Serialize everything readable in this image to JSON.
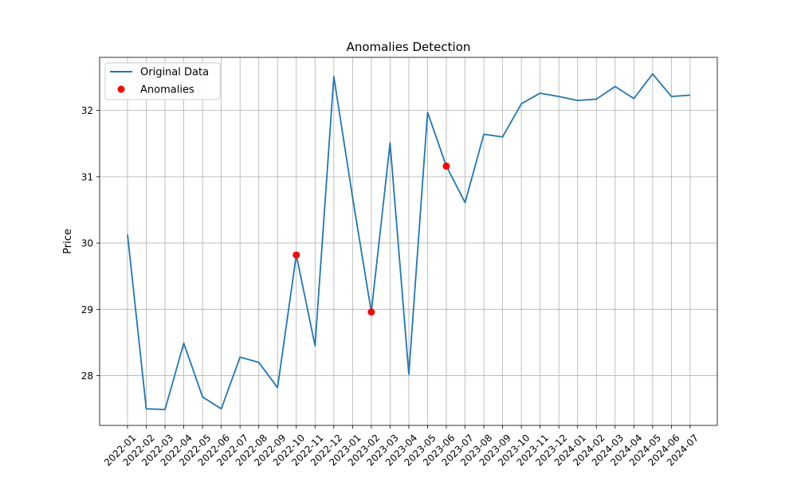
{
  "chart_data": {
    "type": "line",
    "title": "Anomalies Detection",
    "xlabel": "",
    "ylabel": "Price",
    "ylim": [
      27.25,
      32.8
    ],
    "yticks": [
      28,
      29,
      30,
      31,
      32
    ],
    "grid": true,
    "legend_position": "top-left",
    "x": [
      "2022-01",
      "2022-02",
      "2022-03",
      "2022-04",
      "2022-05",
      "2022-06",
      "2022-07",
      "2022-08",
      "2022-09",
      "2022-10",
      "2022-11",
      "2022-12",
      "2023-01",
      "2023-02",
      "2023-03",
      "2023-04",
      "2023-05",
      "2023-06",
      "2023-07",
      "2023-08",
      "2023-09",
      "2023-10",
      "2023-11",
      "2023-12",
      "2024-01",
      "2024-02",
      "2024-03",
      "2024-04",
      "2024-05",
      "2024-06",
      "2024-07"
    ],
    "series": [
      {
        "name": "Original Data",
        "kind": "line",
        "color": "#1f77b4",
        "values": [
          30.13,
          27.5,
          27.49,
          28.49,
          27.68,
          27.5,
          28.28,
          28.2,
          27.82,
          29.82,
          28.45,
          32.51,
          30.69,
          28.96,
          31.51,
          28.02,
          31.97,
          31.16,
          30.61,
          31.64,
          31.6,
          32.1,
          32.26,
          32.21,
          32.15,
          32.17,
          32.36,
          32.18,
          32.55,
          32.21,
          32.23
        ]
      },
      {
        "name": "Anomalies",
        "kind": "scatter",
        "color": "#ff0000",
        "points": [
          {
            "x": "2022-10",
            "y": 29.82
          },
          {
            "x": "2023-02",
            "y": 28.96
          },
          {
            "x": "2023-06",
            "y": 31.16
          }
        ]
      }
    ]
  }
}
